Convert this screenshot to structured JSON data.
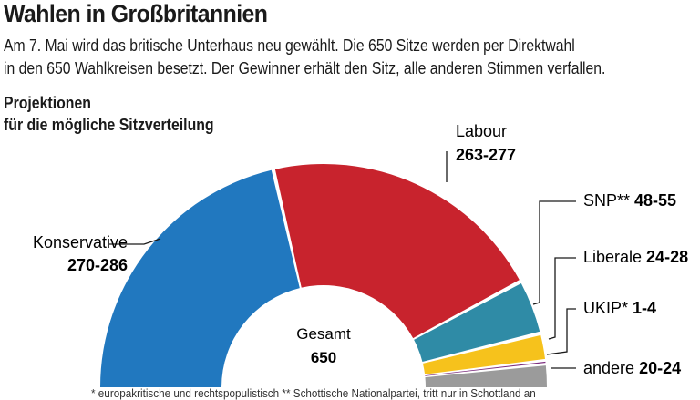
{
  "header": {
    "title": "Wahlen in Großbritannien",
    "intro_line1": "Am 7. Mai wird das britische Unterhaus neu gewählt. Die 650 Sitze werden per Direktwahl",
    "intro_line2": "in den 650 Wahlkreisen besetzt. Der Gewinner erhält den Sitz, alle anderen Stimmen verfallen."
  },
  "subtitle": {
    "line1": "Projektionen",
    "line2": "für die mögliche Sitzverteilung"
  },
  "center": {
    "label": "Gesamt",
    "value": "650"
  },
  "footnote": "* europakritische und rechtspopulistisch  ** Schottische Nationalpartei, tritt nur in Schottland an",
  "chart_data": {
    "type": "pie",
    "variant": "semicircle-donut",
    "title": "Projektionen für die mögliche Sitzverteilung",
    "total_seats": 650,
    "total_label": "Gesamt",
    "slices": [
      {
        "name": "Konservative",
        "range": "270-286",
        "min": 270,
        "max": 286,
        "midpoint": 278,
        "color": "#2178bf"
      },
      {
        "name": "Labour",
        "range": "263-277",
        "min": 263,
        "max": 277,
        "midpoint": 270,
        "color": "#c8232d"
      },
      {
        "name": "SNP**",
        "range": "48-55",
        "min": 48,
        "max": 55,
        "midpoint": 51.5,
        "color": "#2f8ba6"
      },
      {
        "name": "Liberale",
        "range": "24-28",
        "min": 24,
        "max": 28,
        "midpoint": 26,
        "color": "#f6c21c"
      },
      {
        "name": "UKIP*",
        "range": "1-4",
        "min": 1,
        "max": 4,
        "midpoint": 2.5,
        "color": "#7d2e7f"
      },
      {
        "name": "andere",
        "range": "20-24",
        "min": 20,
        "max": 24,
        "midpoint": 22,
        "color": "#9b9b9b"
      }
    ]
  }
}
